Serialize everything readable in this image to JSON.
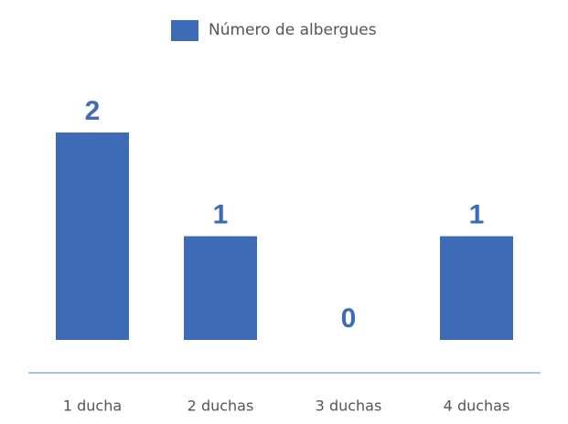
{
  "chart_data": {
    "type": "bar",
    "categories": [
      "1 ducha",
      "2 duchas",
      "3 duchas",
      "4 duchas"
    ],
    "series": [
      {
        "name": "Número de albergues",
        "color": "#3d6bb5",
        "values": [
          2,
          1,
          0,
          1
        ]
      }
    ]
  }
}
